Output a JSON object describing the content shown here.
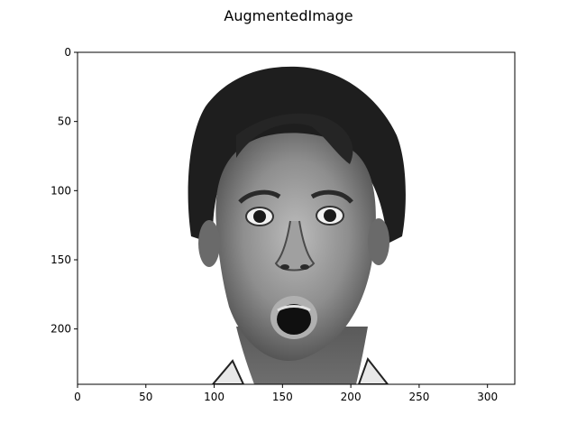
{
  "chart_data": {
    "type": "image",
    "title": "AugmentedImage",
    "xlabel": "",
    "ylabel": "",
    "image_size": [
      320,
      240
    ],
    "xlim": [
      0,
      320
    ],
    "ylim": [
      240,
      0
    ],
    "xticks": [
      0,
      50,
      100,
      150,
      200,
      250,
      300
    ],
    "yticks": [
      0,
      50,
      100,
      150,
      200
    ],
    "grid": false,
    "colormap": "gray",
    "image_content": "grayscale photograph of a surprised man's face with dark hair"
  }
}
